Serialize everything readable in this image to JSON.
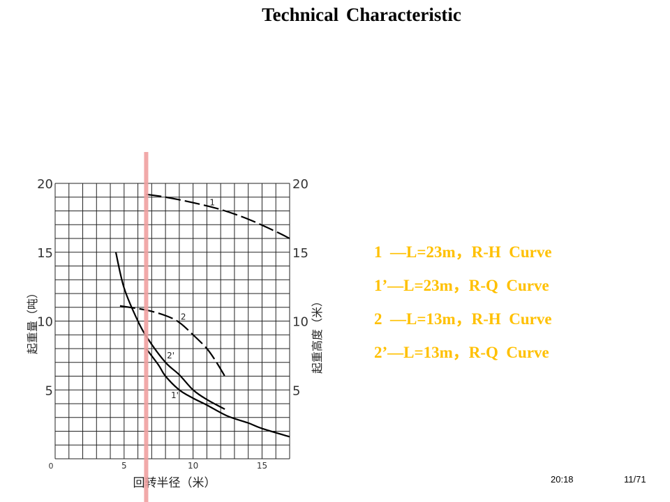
{
  "title": "Technical  Characteristic",
  "legend": [
    "1  —L=23m，R-H  Curve",
    "1’—L=23m，R-Q  Curve",
    "2  —L=13m，R-H  Curve",
    "2’—L=13m，R-Q  Curve"
  ],
  "footer": {
    "time": "20:18",
    "page": "11/71"
  },
  "colors": {
    "legend": "#FFC000",
    "marker": "#F0A0A0"
  },
  "chart_data": {
    "type": "line",
    "xlabel": "回转半径（米）",
    "ylabel_left": "起重量（吨）",
    "ylabel_right": "起重高度（米）",
    "xlim": [
      0,
      17
    ],
    "ylim": [
      0,
      20
    ],
    "grid": true,
    "x_ticks": [
      0,
      5,
      10,
      15
    ],
    "y_ticks": [
      5,
      10,
      15,
      20
    ],
    "x_tick_labels": [
      "0",
      "5",
      "10",
      "15"
    ],
    "y_tick_labels": [
      "5",
      "10",
      "15",
      "20"
    ],
    "marker_line_x": 6.6,
    "series": [
      {
        "name": "1",
        "style": "dashed",
        "x": [
          6.6,
          8,
          10,
          12,
          14,
          16,
          17
        ],
        "y": [
          19.2,
          19.0,
          18.6,
          18.1,
          17.4,
          16.5,
          16.0
        ],
        "label_at": [
          11.2,
          18.4
        ]
      },
      {
        "name": "1'",
        "style": "solid",
        "x": [
          6.6,
          7.5,
          8,
          9,
          10,
          11,
          12.5,
          14,
          15,
          17
        ],
        "y": [
          8.0,
          6.8,
          6.0,
          5.0,
          4.4,
          3.9,
          3.1,
          2.6,
          2.2,
          1.6
        ],
        "label_at": [
          8.4,
          4.4
        ]
      },
      {
        "name": "2",
        "style": "dashed",
        "x": [
          4.7,
          6.6,
          8,
          9,
          10,
          11,
          11.7,
          12.3
        ],
        "y": [
          11.1,
          10.8,
          10.4,
          9.9,
          9.0,
          8.0,
          7.0,
          6.0
        ],
        "label_at": [
          9.1,
          10.1
        ]
      },
      {
        "name": "2'",
        "style": "solid",
        "x": [
          4.4,
          5,
          6,
          6.8,
          8,
          9,
          10,
          11,
          12.3
        ],
        "y": [
          15.0,
          12.4,
          10.0,
          8.6,
          7.0,
          6.1,
          5.0,
          4.3,
          3.6
        ],
        "label_at": [
          8.1,
          7.3
        ]
      }
    ]
  }
}
